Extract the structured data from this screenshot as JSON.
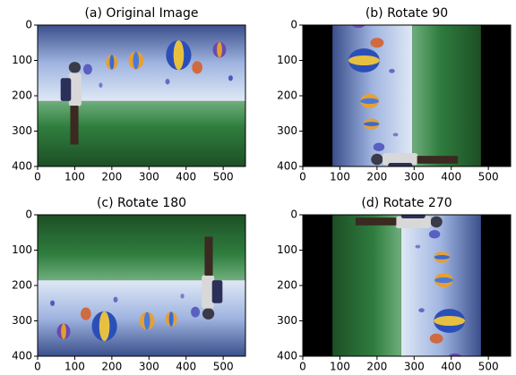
{
  "chart_data": [
    {
      "type": "image",
      "title": "(a) Original Image",
      "rotation": 0,
      "xlim": [
        0,
        560
      ],
      "ylim": [
        400,
        0
      ],
      "xticks": [
        0,
        100,
        200,
        300,
        400,
        500
      ],
      "yticks": [
        0,
        100,
        200,
        300,
        400
      ]
    },
    {
      "type": "image",
      "title": "(b) Rotate 90",
      "rotation": 90,
      "xlim": [
        0,
        560
      ],
      "ylim": [
        400,
        0
      ],
      "xticks": [
        0,
        100,
        200,
        300,
        400,
        500
      ],
      "yticks": [
        0,
        100,
        200,
        300,
        400
      ]
    },
    {
      "type": "image",
      "title": "(c) Rotate 180",
      "rotation": 180,
      "xlim": [
        0,
        560
      ],
      "ylim": [
        400,
        0
      ],
      "xticks": [
        0,
        100,
        200,
        300,
        400,
        500
      ],
      "yticks": [
        0,
        100,
        200,
        300,
        400
      ]
    },
    {
      "type": "image",
      "title": "(d) Rotate 270",
      "rotation": 270,
      "xlim": [
        0,
        560
      ],
      "ylim": [
        400,
        0
      ],
      "xticks": [
        0,
        100,
        200,
        300,
        400,
        500
      ],
      "yticks": [
        0,
        100,
        200,
        300,
        400
      ]
    }
  ]
}
